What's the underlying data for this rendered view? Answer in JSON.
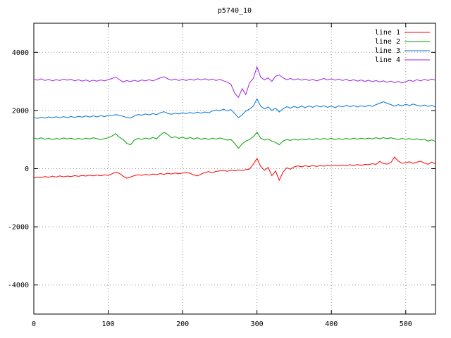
{
  "title": "p5740_10",
  "chart_data": {
    "type": "line",
    "title": "p5740_10",
    "xlabel": "",
    "ylabel": "",
    "xlim": [
      0,
      540
    ],
    "ylim": [
      -5000,
      5000
    ],
    "x_ticks": [
      0,
      100,
      200,
      300,
      400,
      500
    ],
    "y_ticks": [
      -4000,
      -2000,
      0,
      2000,
      4000
    ],
    "grid": true,
    "legend_position": "top-right-inside",
    "x_start": 0,
    "x_step": 5,
    "series": [
      {
        "name": "line 1",
        "color": "#ff0000",
        "values": [
          -320,
          -290,
          -310,
          -270,
          -300,
          -260,
          -290,
          -250,
          -280,
          -255,
          -270,
          -240,
          -265,
          -235,
          -255,
          -225,
          -250,
          -220,
          -245,
          -215,
          -230,
          -180,
          -120,
          -160,
          -260,
          -330,
          -290,
          -240,
          -210,
          -230,
          -200,
          -220,
          -185,
          -205,
          -170,
          -195,
          -160,
          -185,
          -150,
          -175,
          -155,
          -130,
          -160,
          -215,
          -250,
          -190,
          -130,
          -105,
          -135,
          -95,
          -80,
          -60,
          -90,
          -55,
          -75,
          -45,
          -65,
          -35,
          -15,
          150,
          350,
          80,
          -60,
          40,
          -240,
          -80,
          -400,
          -120,
          30,
          -20,
          60,
          95,
          65,
          100,
          70,
          110,
          75,
          105,
          85,
          115,
          90,
          120,
          95,
          125,
          100,
          135,
          105,
          140,
          115,
          145,
          135,
          170,
          145,
          250,
          175,
          155,
          205,
          400,
          260,
          185,
          205,
          235,
          180,
          225,
          255,
          195,
          150,
          225,
          160
        ]
      },
      {
        "name": "line 2",
        "color": "#00a000",
        "values": [
          1050,
          1020,
          1060,
          1010,
          1045,
          1000,
          1040,
          1015,
          1055,
          1025,
          1045,
          1005,
          1040,
          1010,
          1050,
          1020,
          1060,
          1030,
          1000,
          1035,
          1060,
          1120,
          1200,
          1080,
          1000,
          870,
          820,
          980,
          1040,
          1010,
          1050,
          1020,
          1070,
          1030,
          1150,
          1250,
          1180,
          1060,
          1100,
          1040,
          1080,
          1030,
          1070,
          1020,
          1060,
          1010,
          1050,
          1000,
          1045,
          1015,
          1055,
          1020,
          980,
          1000,
          870,
          700,
          850,
          950,
          1000,
          1100,
          1250,
          1050,
          980,
          1020,
          950,
          900,
          820,
          950,
          1000,
          970,
          1010,
          980,
          1020,
          990,
          1030,
          995,
          1035,
          1005,
          1040,
          1010,
          1045,
          1000,
          1035,
          1005,
          1040,
          1010,
          1050,
          1015,
          1045,
          1020,
          1050,
          1025,
          1060,
          1030,
          1065,
          1035,
          1060,
          1030,
          1000,
          1040,
          1010,
          1035,
          995,
          1025,
          985,
          1015,
          950,
          990,
          930
        ]
      },
      {
        "name": "line 3",
        "color": "#0072d8",
        "values": [
          1760,
          1730,
          1770,
          1740,
          1780,
          1745,
          1785,
          1750,
          1790,
          1755,
          1795,
          1760,
          1800,
          1770,
          1810,
          1775,
          1815,
          1780,
          1820,
          1790,
          1830,
          1820,
          1860,
          1830,
          1800,
          1760,
          1740,
          1810,
          1860,
          1840,
          1880,
          1850,
          1890,
          1860,
          1920,
          1960,
          1900,
          1870,
          1910,
          1880,
          1920,
          1890,
          1930,
          1900,
          1940,
          1910,
          1950,
          1920,
          1980,
          2020,
          1990,
          2040,
          1990,
          2030,
          1900,
          1750,
          1850,
          1980,
          2050,
          2150,
          2400,
          2150,
          2050,
          2120,
          2000,
          2080,
          1950,
          2060,
          2130,
          2080,
          2140,
          2090,
          2150,
          2100,
          2160,
          2110,
          2170,
          2120,
          2160,
          2110,
          2150,
          2100,
          2160,
          2120,
          2180,
          2130,
          2170,
          2120,
          2160,
          2130,
          2180,
          2140,
          2200,
          2250,
          2300,
          2250,
          2200,
          2150,
          2200,
          2160,
          2210,
          2170,
          2220,
          2180,
          2150,
          2190,
          2140,
          2180,
          2120
        ]
      },
      {
        "name": "line 4",
        "color": "#a020e0",
        "values": [
          3080,
          3040,
          3090,
          3030,
          3070,
          3020,
          3060,
          3030,
          3080,
          3040,
          3070,
          3020,
          3060,
          3010,
          3050,
          3000,
          3040,
          3010,
          3050,
          3020,
          3060,
          3100,
          3150,
          3060,
          2980,
          3030,
          2990,
          3040,
          3000,
          3050,
          3020,
          3060,
          3020,
          3070,
          3120,
          3160,
          3090,
          3040,
          3080,
          3030,
          3070,
          3030,
          3080,
          3040,
          3090,
          3050,
          3090,
          3040,
          3080,
          3030,
          3070,
          3020,
          2980,
          2900,
          2600,
          2450,
          2750,
          2550,
          2950,
          3100,
          3500,
          3150,
          3050,
          3120,
          3000,
          3180,
          3220,
          3120,
          3060,
          3100,
          3050,
          3090,
          3040,
          3080,
          3030,
          3070,
          3020,
          3060,
          3100,
          3050,
          3090,
          3040,
          3080,
          3030,
          3070,
          3020,
          3060,
          3010,
          3050,
          3000,
          3040,
          2990,
          3030,
          2980,
          3020,
          2970,
          3010,
          2960,
          3000,
          2950,
          2990,
          3040,
          3000,
          3060,
          3020,
          3070,
          3030,
          3080,
          3040
        ]
      }
    ]
  }
}
